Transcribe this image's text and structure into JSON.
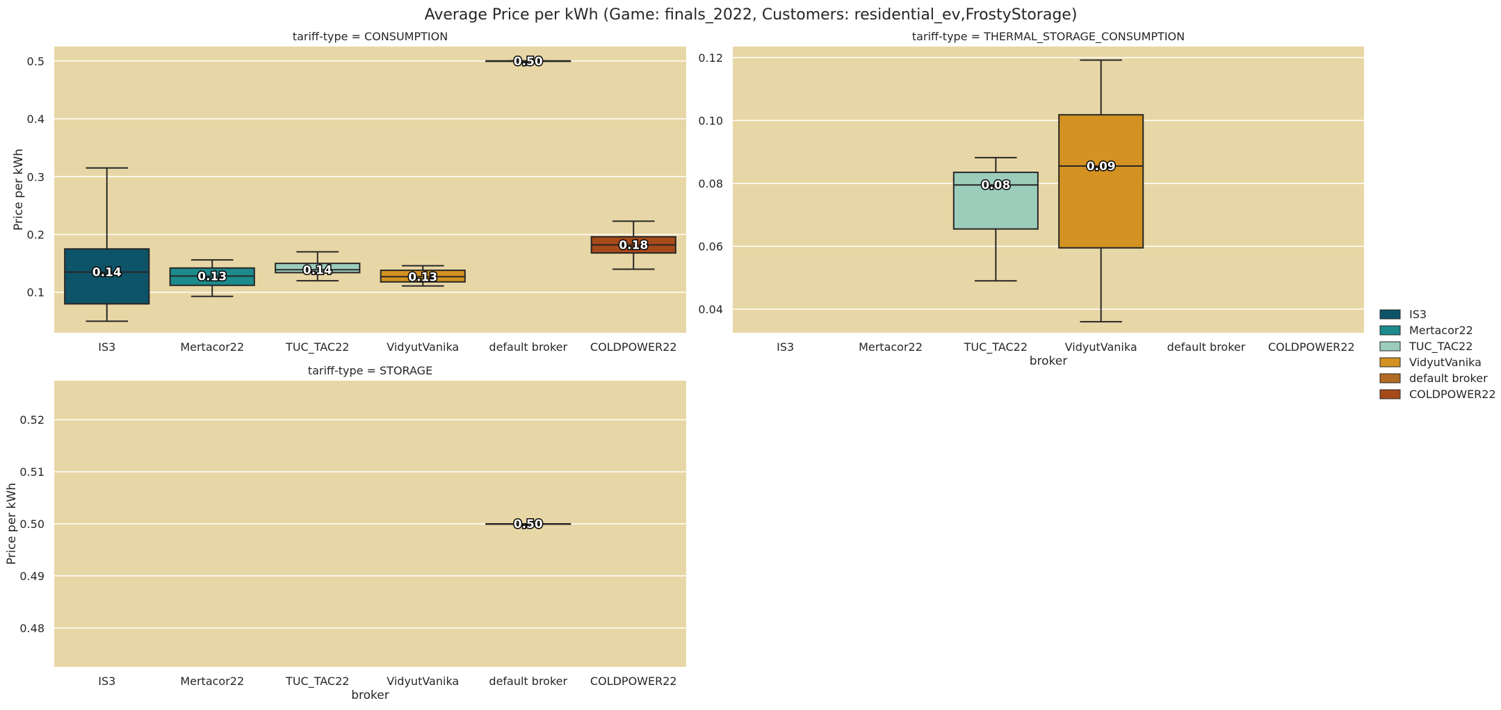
{
  "title": "Average Price per kWh (Game: finals_2022, Customers: residential_ev,FrostyStorage)",
  "colors": {
    "plot_background": "#e8d7a6",
    "grid": "#ffffff",
    "brokers": {
      "IS3": "#0e5468",
      "Mertacor22": "#1d8a8c",
      "TUC_TAC22": "#9ccdbb",
      "VidyutVanika": "#d39222",
      "default broker": "#b26b24",
      "COLDPOWER22": "#a74a1a"
    }
  },
  "legend": {
    "position": "right",
    "items": [
      "IS3",
      "Mertacor22",
      "TUC_TAC22",
      "VidyutVanika",
      "default broker",
      "COLDPOWER22"
    ]
  },
  "chart_data": [
    {
      "type": "box",
      "title": "tariff-type = CONSUMPTION",
      "xlabel": "",
      "ylabel": "Price per kWh",
      "categories": [
        "IS3",
        "Mertacor22",
        "TUC_TAC22",
        "VidyutVanika",
        "default broker",
        "COLDPOWER22"
      ],
      "ylim": [
        0.03,
        0.525
      ],
      "yticks": [
        "0.1",
        "0.2",
        "0.3",
        "0.4",
        "0.5"
      ],
      "grid": true,
      "boxes": [
        {
          "broker": "IS3",
          "min": 0.05,
          "q1": 0.08,
          "median": 0.135,
          "q3": 0.175,
          "max": 0.315,
          "label": "0.14"
        },
        {
          "broker": "Mertacor22",
          "min": 0.093,
          "q1": 0.112,
          "median": 0.128,
          "q3": 0.142,
          "max": 0.156,
          "label": "0.13"
        },
        {
          "broker": "TUC_TAC22",
          "min": 0.12,
          "q1": 0.134,
          "median": 0.139,
          "q3": 0.15,
          "max": 0.17,
          "label": "0.14"
        },
        {
          "broker": "VidyutVanika",
          "min": 0.111,
          "q1": 0.118,
          "median": 0.127,
          "q3": 0.138,
          "max": 0.146,
          "label": "0.13"
        },
        {
          "broker": "default broker",
          "min": 0.5,
          "q1": 0.5,
          "median": 0.5,
          "q3": 0.5,
          "max": 0.5,
          "label": "0.50"
        },
        {
          "broker": "COLDPOWER22",
          "min": 0.14,
          "q1": 0.168,
          "median": 0.182,
          "q3": 0.196,
          "max": 0.223,
          "label": "0.18"
        }
      ]
    },
    {
      "type": "box",
      "title": "tariff-type = THERMAL_STORAGE_CONSUMPTION",
      "xlabel": "broker",
      "ylabel": "",
      "categories": [
        "IS3",
        "Mertacor22",
        "TUC_TAC22",
        "VidyutVanika",
        "default broker",
        "COLDPOWER22"
      ],
      "ylim": [
        0.0325,
        0.1235
      ],
      "yticks": [
        "0.04",
        "0.06",
        "0.08",
        "0.10",
        "0.12"
      ],
      "grid": true,
      "boxes": [
        {
          "broker": "TUC_TAC22",
          "min": 0.049,
          "q1": 0.0655,
          "median": 0.0795,
          "q3": 0.0835,
          "max": 0.0882,
          "label": "0.08"
        },
        {
          "broker": "VidyutVanika",
          "min": 0.036,
          "q1": 0.0595,
          "median": 0.0855,
          "q3": 0.1018,
          "max": 0.1192,
          "label": "0.09"
        }
      ]
    },
    {
      "type": "box",
      "title": "tariff-type = STORAGE",
      "xlabel": "broker",
      "ylabel": "Price per kWh",
      "categories": [
        "IS3",
        "Mertacor22",
        "TUC_TAC22",
        "VidyutVanika",
        "default broker",
        "COLDPOWER22"
      ],
      "ylim": [
        0.4725,
        0.5275
      ],
      "yticks": [
        "0.48",
        "0.49",
        "0.50",
        "0.51",
        "0.52"
      ],
      "grid": true,
      "boxes": [
        {
          "broker": "default broker",
          "min": 0.5,
          "q1": 0.5,
          "median": 0.5,
          "q3": 0.5,
          "max": 0.5,
          "label": "0.50"
        }
      ]
    }
  ]
}
